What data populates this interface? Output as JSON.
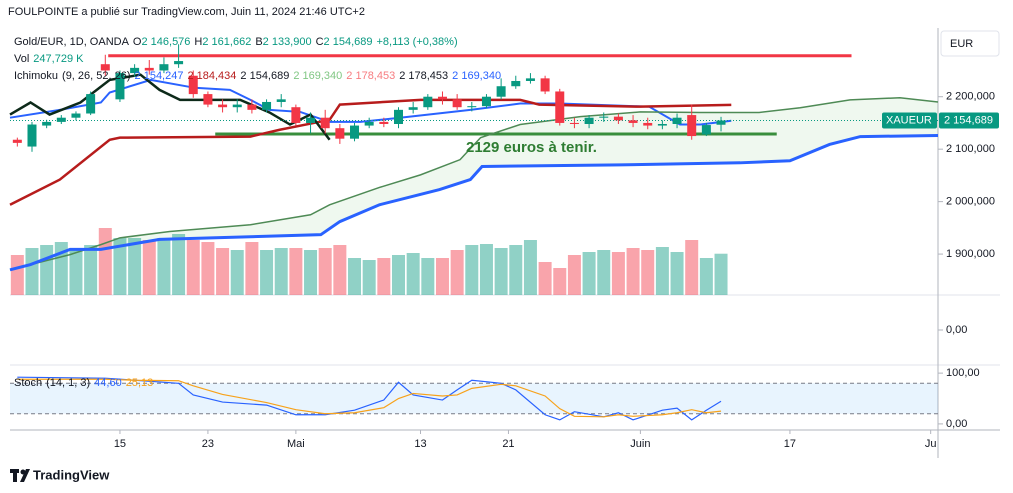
{
  "header": {
    "author": "FOULPOINTE a publié sur TradingView.com, Juin 11, 2024 21:46 UTC+2",
    "brand": "TradingView"
  },
  "chart_data": [
    {
      "type": "candlestick",
      "title": "Gold/EUR, 1D, OANDA",
      "currency": "EUR",
      "symbol": "XAUEUR",
      "last_label": "2 154,689",
      "legend": [
        {
          "label": "O",
          "value": "2 146,576"
        },
        {
          "label": "H",
          "value": "2 161,662"
        },
        {
          "label": "B",
          "value": "2 133,900"
        },
        {
          "label": "C",
          "value": "2 154,689"
        },
        {
          "label": "",
          "value": "+8,113 (+0,38%)"
        }
      ],
      "open": [
        2118,
        2105,
        2145,
        2152,
        2160,
        2168,
        2262,
        2195,
        2245,
        2255,
        2250,
        2262,
        2240,
        2205,
        2185,
        2180,
        2185,
        2175,
        2190,
        2180,
        2150,
        2160,
        2140,
        2120,
        2145,
        2152,
        2148,
        2175,
        2180,
        2200,
        2195,
        2180,
        2182,
        2200,
        2220,
        2230,
        2235,
        2210,
        2150,
        2148,
        2160,
        2162,
        2155,
        2150,
        2145,
        2148,
        2165,
        2128,
        2146.576
      ],
      "high": [
        2122,
        2152,
        2156,
        2165,
        2172,
        2210,
        2280,
        2250,
        2262,
        2270,
        2275,
        2300,
        2250,
        2210,
        2195,
        2195,
        2195,
        2195,
        2205,
        2185,
        2170,
        2175,
        2148,
        2150,
        2160,
        2160,
        2180,
        2190,
        2205,
        2210,
        2205,
        2190,
        2205,
        2235,
        2240,
        2245,
        2240,
        2215,
        2160,
        2165,
        2170,
        2168,
        2165,
        2160,
        2155,
        2168,
        2185,
        2150,
        2161.662
      ],
      "low": [
        2105,
        2095,
        2140,
        2148,
        2155,
        2165,
        2240,
        2190,
        2238,
        2242,
        2245,
        2255,
        2198,
        2180,
        2170,
        2170,
        2168,
        2170,
        2180,
        2145,
        2130,
        2130,
        2110,
        2115,
        2140,
        2142,
        2140,
        2168,
        2175,
        2185,
        2175,
        2172,
        2178,
        2195,
        2215,
        2225,
        2205,
        2145,
        2140,
        2140,
        2152,
        2148,
        2142,
        2138,
        2138,
        2140,
        2118,
        2125,
        2133.9
      ],
      "close": [
        2112,
        2147,
        2152,
        2160,
        2168,
        2205,
        2250,
        2245,
        2255,
        2250,
        2262,
        2268,
        2205,
        2185,
        2180,
        2185,
        2175,
        2190,
        2195,
        2150,
        2160,
        2140,
        2120,
        2145,
        2152,
        2148,
        2175,
        2180,
        2200,
        2195,
        2180,
        2182,
        2200,
        2220,
        2230,
        2235,
        2210,
        2150,
        2148,
        2160,
        2162,
        2155,
        2150,
        2145,
        2148,
        2160,
        2125,
        2146,
        2154.689
      ],
      "up_color": "#089981",
      "down_color": "#f23645",
      "volume": {
        "name": "Vol",
        "values": [
          240,
          282,
          300,
          318,
          282,
          300,
          402,
          342,
          342,
          330,
          342,
          366,
          330,
          318,
          282,
          270,
          318,
          270,
          282,
          282,
          270,
          282,
          300,
          222,
          210,
          222,
          240,
          252,
          222,
          222,
          270,
          300,
          306,
          282,
          300,
          330,
          198,
          162,
          240,
          258,
          270,
          258,
          282,
          270,
          288,
          258,
          330,
          222,
          247.729
        ],
        "value_label": "247,729 K",
        "vlim": [
          0,
          420
        ]
      },
      "indicator": {
        "name": "Ichimoku",
        "params": "(9, 26, 52, 26)",
        "legend_values": [
          {
            "text": "2 154,247",
            "color": "#2962ff"
          },
          {
            "text": "2 184,434",
            "color": "#b71c1c"
          },
          {
            "text": "2 154,689",
            "color": "#131722"
          },
          {
            "text": "2 169,340",
            "color": "#81c784"
          },
          {
            "text": "2 178,453",
            "color": "#f77c80"
          },
          {
            "text": "2 178,453",
            "color": "#131722"
          },
          {
            "text": "2 169,340",
            "color": "#2962ff"
          }
        ],
        "cloud": {
          "between": [
            3,
            4
          ],
          "color": "rgba(76,175,80,0.09)"
        },
        "series": [
          {
            "color": "#2962ff",
            "width": 2,
            "x": [
              -0.5,
              2.9,
              5.7,
              6.3,
              9.1,
              12.1,
              14.5,
              15.9,
              17.2,
              19.3,
              21.3,
              23.4,
              26.1,
              30.9,
              34.3,
              37,
              43.1,
              45.2,
              46.6,
              48.7
            ],
            "values": [
              2160,
              2175,
              2189,
              2208,
              2232,
              2217,
              2213,
              2194,
              2175,
              2171,
              2152,
              2152,
              2160,
              2175,
              2187,
              2187,
              2181,
              2147,
              2147,
              2154.247
            ]
          },
          {
            "color": "#b71c1c",
            "width": 2.5,
            "x": [
              -0.5,
              2.9,
              6.3,
              7,
              15.9,
              17.9,
              21.3,
              22,
              27.5,
              34.3,
              35.6,
              42.5,
              48.7
            ],
            "values": [
              1994,
              2042,
              2118,
              2122,
              2124,
              2137,
              2156,
              2185,
              2194,
              2194,
              2185,
              2181,
              2184.434
            ]
          },
          {
            "color": "#0d2a1a",
            "width": 2.5,
            "x": [
              -0.5,
              0.9,
              2.2,
              4.3,
              6.3,
              8.4,
              9.7,
              11.1,
              15.2,
              17.2,
              18.6,
              20,
              21.3
            ],
            "values": [
              2166,
              2189,
              2166,
              2189,
              2232,
              2242,
              2213,
              2194,
              2194,
              2170,
              2147,
              2166,
              2118
            ]
          },
          {
            "color": "#4e8a55",
            "width": 1.5,
            "x": [
              -0.5,
              3.6,
              5.7,
              7,
              10.4,
              15.9,
              20,
              21.3,
              24.7,
              27.5,
              30.2,
              31.6,
              34.3,
              38.4,
              42.5,
              46.6,
              50.6,
              53.4,
              56.8,
              60.2,
              62.8
            ],
            "values": [
              1870,
              1899,
              1918,
              1931,
              1943,
              1956,
              1975,
              1994,
              2027,
              2051,
              2080,
              2122,
              2147,
              2162,
              2171,
              2170,
              2170,
              2179,
              2194,
              2198,
              2190
            ]
          },
          {
            "color": "#2962ff",
            "width": 3,
            "x": [
              -0.5,
              0.9,
              3.6,
              5.7,
              9.7,
              15.9,
              20.7,
              22,
              24.7,
              28.8,
              30.9,
              31.7,
              41.1,
              49.3,
              52.7,
              55.4,
              57.5,
              62.8
            ],
            "values": [
              1870,
              1880,
              1909,
              1909,
              1928,
              1933,
              1937,
              1962,
              1994,
              2023,
              2042,
              2067,
              2070,
              2074,
              2078,
              2109,
              2124,
              2126
            ]
          }
        ]
      },
      "annotation": "2129 euros à tenir.",
      "levels": [
        {
          "value": 2278,
          "color": "#f23645",
          "x": [
            6.2,
            56.9
          ]
        },
        {
          "value": 2129,
          "color": "#388e3c",
          "x": [
            13.5,
            51.8
          ]
        }
      ],
      "xlim": [
        -0.5,
        62.8
      ],
      "ylim": [
        1822,
        2331
      ],
      "yticks": [
        {
          "value": 1900,
          "label": "1 900,000"
        },
        {
          "value": 2000,
          "label": "2 000,000"
        },
        {
          "value": 2100,
          "label": "2 100,000"
        },
        {
          "value": 2200,
          "label": "2 200,000"
        }
      ]
    },
    {
      "type": "line",
      "xlim": [
        -0.5,
        62.8
      ],
      "ylim": [
        -1,
        1
      ],
      "yticks": [
        {
          "value": 0,
          "label": "0,00"
        }
      ]
    },
    {
      "type": "line",
      "title": "Stoch",
      "params": "(14, 1, 3)",
      "xlim": [
        -0.5,
        62.8
      ],
      "ylim": [
        -12,
        116
      ],
      "x": [
        0,
        6,
        8,
        11,
        12,
        14,
        17,
        19,
        21,
        23,
        25,
        26,
        27,
        29,
        30,
        31,
        33,
        34,
        36,
        37,
        38,
        40,
        41,
        42,
        44,
        45,
        46,
        47,
        48
      ],
      "series": [
        {
          "color": "#2962ff",
          "value_label": "44,60",
          "values": [
            92,
            90,
            86,
            80,
            57,
            43,
            37,
            18,
            18,
            27,
            47,
            82,
            57,
            47,
            67,
            86,
            80,
            67,
            18,
            8,
            24,
            14,
            22,
            8,
            27,
            31,
            8,
            27,
            44.6
          ]
        },
        {
          "color": "#f7a21b",
          "value_label": "25,13",
          "values": [
            88,
            88,
            86,
            85,
            75,
            58,
            42,
            28,
            20,
            22,
            32,
            50,
            60,
            55,
            57,
            70,
            78,
            75,
            55,
            30,
            15,
            14,
            18,
            15,
            18,
            22,
            28,
            22,
            25.13
          ]
        }
      ],
      "bands": [
        20,
        80
      ],
      "yticks": [
        {
          "value": 0,
          "label": "0,00"
        },
        {
          "value": 100,
          "label": "100,00"
        }
      ],
      "xticks": [
        {
          "value": 7,
          "label": "15"
        },
        {
          "value": 13,
          "label": "23"
        },
        {
          "value": 19,
          "label": "Mai"
        },
        {
          "value": 27.5,
          "label": "13"
        },
        {
          "value": 33.5,
          "label": "21"
        },
        {
          "value": 42.5,
          "label": "Juin"
        },
        {
          "value": 52.7,
          "label": "17"
        },
        {
          "value": 62.3,
          "label": "Ju"
        }
      ]
    }
  ]
}
